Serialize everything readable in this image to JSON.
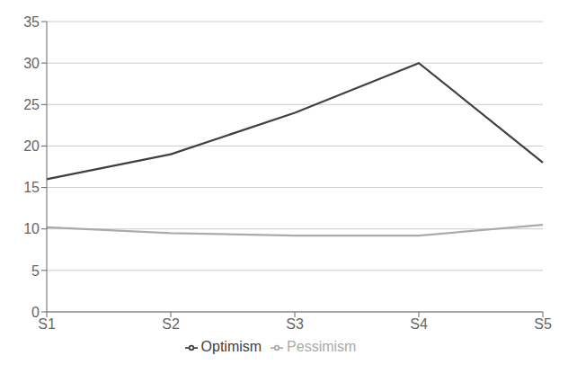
{
  "chart_data": {
    "type": "line",
    "categories": [
      "S1",
      "S2",
      "S3",
      "S4",
      "S5"
    ],
    "series": [
      {
        "name": "Optimism",
        "color": "#404040",
        "values": [
          16,
          19,
          24,
          30,
          18
        ]
      },
      {
        "name": "Pessimism",
        "color": "#aaaaaa",
        "values": [
          10.2,
          9.5,
          9.2,
          9.2,
          10.5
        ]
      }
    ],
    "ylim": [
      0,
      35
    ],
    "yticks": [
      0,
      5,
      10,
      15,
      20,
      25,
      30,
      35
    ],
    "grid": true,
    "legend": "bottom"
  }
}
